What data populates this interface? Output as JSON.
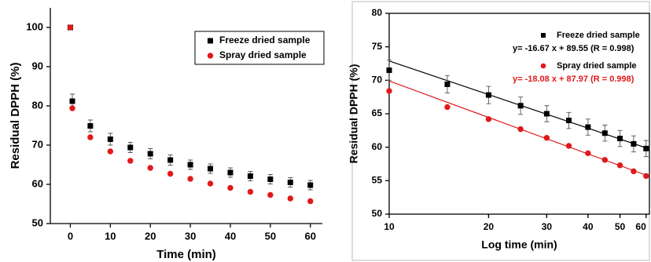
{
  "chart_data": [
    {
      "type": "scatter",
      "ylabel": "Residual DPPH (%)",
      "xlabel": "Time (min)",
      "x": [
        0,
        0.5,
        5,
        10,
        15,
        20,
        25,
        30,
        35,
        40,
        45,
        50,
        55,
        60
      ],
      "series": [
        {
          "name": "Freeze dried sample",
          "color": "#000000",
          "marker": "square",
          "values": [
            100,
            81.2,
            74.9,
            71.5,
            69.4,
            67.8,
            66.2,
            65.0,
            64.0,
            63.0,
            62.1,
            61.3,
            60.5,
            59.8
          ],
          "errors": [
            0,
            1.8,
            1.5,
            1.5,
            1.3,
            1.3,
            1.3,
            1.2,
            1.2,
            1.2,
            1.2,
            1.2,
            1.2,
            1.2
          ]
        },
        {
          "name": "Spray dried sample",
          "color": "#e0191b",
          "marker": "circle",
          "values": [
            100,
            79.4,
            72.0,
            68.4,
            66.0,
            64.2,
            62.7,
            61.4,
            60.2,
            59.1,
            58.1,
            57.3,
            56.4,
            55.7
          ]
        }
      ],
      "xlim": [
        -5,
        63
      ],
      "xticks": [
        0,
        10,
        20,
        30,
        40,
        50,
        60
      ],
      "ylim": [
        50,
        105
      ],
      "yticks": [
        50,
        60,
        70,
        80,
        90,
        100
      ],
      "legend": "upper right"
    },
    {
      "type": "scatter",
      "ylabel": "Residual DPPH (%)",
      "xlabel": "Log time (min)",
      "xscale": "log",
      "x": [
        10,
        15,
        20,
        25,
        30,
        35,
        40,
        45,
        50,
        55,
        60
      ],
      "series": [
        {
          "name": "Freeze dried sample",
          "color": "#000000",
          "marker": "square",
          "values": [
            71.5,
            69.4,
            67.8,
            66.2,
            65.0,
            64.0,
            63.0,
            62.1,
            61.3,
            60.5,
            59.8
          ],
          "errors": [
            1.5,
            1.3,
            1.3,
            1.3,
            1.2,
            1.2,
            1.2,
            1.2,
            1.2,
            1.2,
            1.2
          ],
          "fit": {
            "label": "y= -16.67 x + 89.55 (R = 0.998)",
            "slope": -16.67,
            "intercept": 89.55
          }
        },
        {
          "name": "Spray dried sample",
          "color": "#e0191b",
          "marker": "circle",
          "values": [
            68.4,
            66.0,
            64.2,
            62.7,
            61.4,
            60.2,
            59.1,
            58.1,
            57.3,
            56.4,
            55.7
          ],
          "fit": {
            "label": "y= -18.08 x + 87.97 (R = 0.998)",
            "slope": -18.08,
            "intercept": 87.97
          }
        }
      ],
      "xlim": [
        10,
        61.4
      ],
      "xticks": [
        10,
        20,
        30,
        40,
        50,
        60
      ],
      "ylim": [
        50,
        80
      ],
      "yticks": [
        50,
        55,
        60,
        65,
        70,
        75,
        80
      ]
    }
  ]
}
